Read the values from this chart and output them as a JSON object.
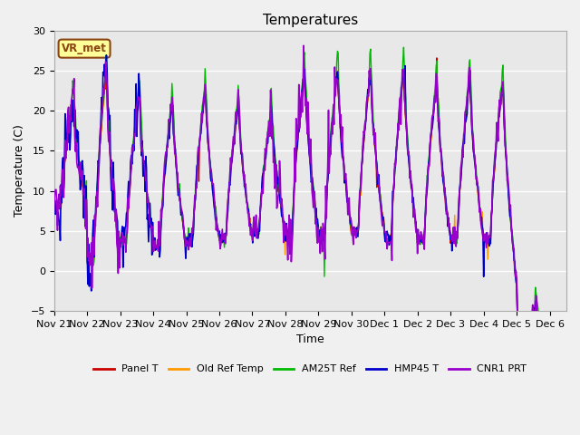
{
  "title": "Temperatures",
  "xlabel": "Time",
  "ylabel": "Temperature (C)",
  "ylim": [
    -5,
    30
  ],
  "yticks": [
    -5,
    0,
    5,
    10,
    15,
    20,
    25,
    30
  ],
  "fig_facecolor": "#f0f0f0",
  "ax_facecolor": "#e8e8e8",
  "annotation_text": "VR_met",
  "annotation_bg": "#ffff99",
  "annotation_border": "#8B4513",
  "grid_color": "#ffffff",
  "colors": {
    "Panel T": "#cc0000",
    "Old Ref Temp": "#ff9900",
    "AM25T Ref": "#00bb00",
    "HMP45 T": "#0000cc",
    "CNR1 PRT": "#9900cc"
  },
  "tick_fontsize": 8,
  "label_fontsize": 9,
  "title_fontsize": 11,
  "linewidth": 1.0,
  "figsize": [
    6.4,
    4.8
  ],
  "dpi": 100,
  "n_days": 15.5,
  "samples_per_hour": 2
}
